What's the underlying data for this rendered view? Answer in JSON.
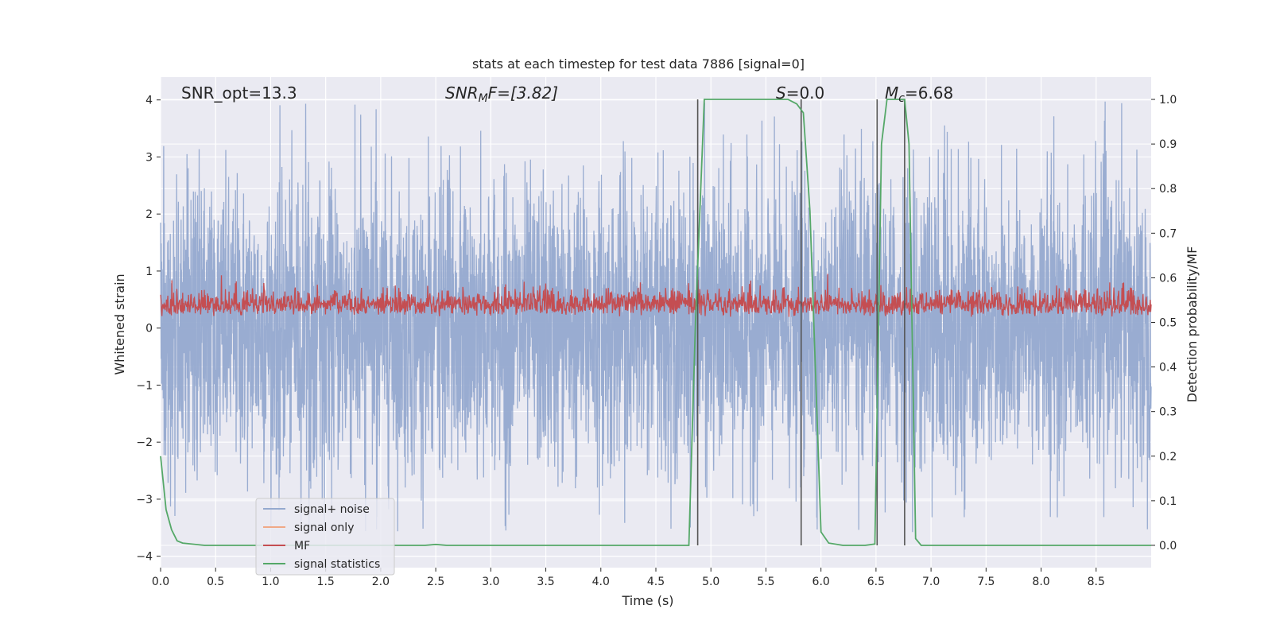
{
  "chart_data": {
    "type": "line",
    "title": "stats at each timestep for test data 7886 [signal=0]",
    "xlabel": "Time (s)",
    "ylabel": "Whitened strain",
    "y2label": "Detection probability/MF",
    "xlim": [
      0.0,
      9.0
    ],
    "ylim": [
      -4.2,
      4.4
    ],
    "y2lim": [
      -0.05,
      1.05
    ],
    "xticks": [
      "0.0",
      "0.5",
      "1.0",
      "1.5",
      "2.0",
      "2.5",
      "3.0",
      "3.5",
      "4.0",
      "4.5",
      "5.0",
      "5.5",
      "6.0",
      "6.5",
      "7.0",
      "7.5",
      "8.0",
      "8.5"
    ],
    "xtick_values": [
      0,
      0.5,
      1,
      1.5,
      2,
      2.5,
      3,
      3.5,
      4,
      4.5,
      5,
      5.5,
      6,
      6.5,
      7,
      7.5,
      8,
      8.5
    ],
    "yticks": [
      "4",
      "3",
      "2",
      "1",
      "0",
      "−1",
      "−2",
      "−3",
      "−4"
    ],
    "ytick_values": [
      4,
      3,
      2,
      1,
      0,
      -1,
      -2,
      -3,
      -4
    ],
    "y2ticks": [
      "1.0",
      "0.9",
      "0.8",
      "0.7",
      "0.6",
      "0.5",
      "0.4",
      "0.3",
      "0.2",
      "0.1",
      "0.0"
    ],
    "y2tick_values": [
      1.0,
      0.9,
      0.8,
      0.7,
      0.6,
      0.5,
      0.4,
      0.3,
      0.2,
      0.1,
      0.0
    ],
    "annotations": {
      "snr_opt": "SNR_opt=13.3",
      "snr_mf_base": "SNR",
      "snr_mf_sub": "M",
      "snr_mf_rest": "F=[3.82]",
      "s_base": "S",
      "s_rest": "=0.0",
      "mc_base": "M",
      "mc_sub": "c",
      "mc_rest": "=6.68"
    },
    "vertical_lines": [
      4.88,
      5.82,
      6.51,
      6.76
    ],
    "vertical_line_range": [
      0.0,
      1.0
    ],
    "series": [
      {
        "name": "signal+ noise",
        "color": "#95a9cf",
        "axis": "left",
        "kind": "noise",
        "noise_sigma": 1.0,
        "x_range": [
          0.0,
          9.0
        ]
      },
      {
        "name": "signal only",
        "color": "#f0a987",
        "axis": "left",
        "kind": "flat",
        "values": []
      },
      {
        "name": "MF",
        "color": "#c44e52",
        "axis": "left",
        "kind": "mf",
        "mean": 0.3,
        "x_range": [
          0.0,
          9.0
        ]
      },
      {
        "name": "signal statistics",
        "color": "#55a868",
        "axis": "right",
        "kind": "line",
        "x": [
          0.0,
          0.05,
          0.1,
          0.15,
          0.2,
          0.4,
          1.0,
          2.4,
          2.5,
          2.6,
          4.8,
          4.86,
          4.94,
          5.6,
          5.7,
          5.78,
          5.84,
          5.9,
          6.0,
          6.07,
          6.2,
          6.4,
          6.49,
          6.55,
          6.6,
          6.76,
          6.8,
          6.86,
          6.91,
          9.0
        ],
        "y": [
          0.2,
          0.08,
          0.035,
          0.01,
          0.005,
          0.0,
          0.0,
          0.0,
          0.002,
          0.0,
          0.0,
          0.5,
          1.0,
          1.0,
          1.0,
          0.99,
          0.97,
          0.75,
          0.03,
          0.005,
          0.0,
          0.0,
          0.003,
          0.9,
          1.0,
          1.0,
          0.9,
          0.015,
          0.0,
          0.0
        ]
      }
    ],
    "legend_position": "lower-left"
  }
}
